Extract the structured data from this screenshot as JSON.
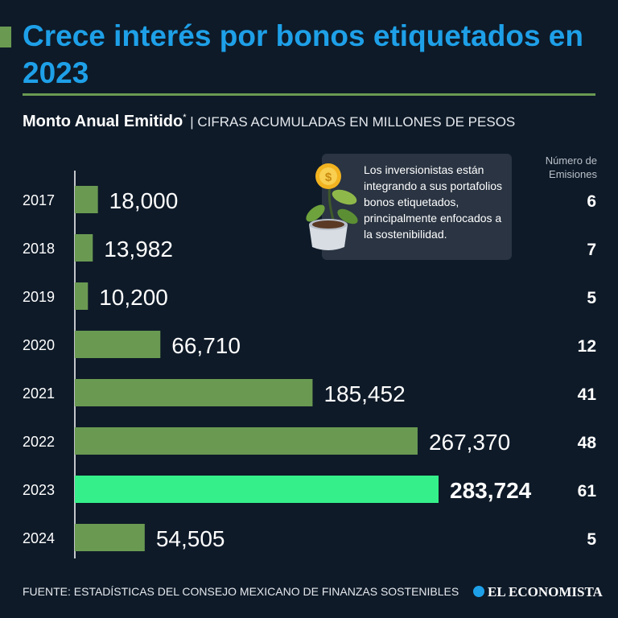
{
  "header": {
    "title": "Crece interés por bonos etiquetados en 2023",
    "subtitle_bold": "Monto Anual Emitido",
    "subtitle_asterisk": "*",
    "subtitle_light": " | CIFRAS ACUMULADAS EN MILLONES DE PESOS"
  },
  "count_header": [
    "Número de",
    "Emisiones"
  ],
  "callout": {
    "text": "Los inversionistas están integrando a sus portafolios bonos etiquetados, principalmente enfocados a la sostenibilidad."
  },
  "colors": {
    "background": "#0e1a28",
    "title": "#1ea0e8",
    "bar": "#6a9a52",
    "highlight_bar": "#35f08a",
    "rule": "#6a9a52"
  },
  "chart_data": {
    "type": "bar",
    "orientation": "horizontal",
    "categories": [
      "2017",
      "2018",
      "2019",
      "2020",
      "2021",
      "2022",
      "2023",
      "2024"
    ],
    "values": [
      18000,
      13982,
      10200,
      66710,
      185452,
      267370,
      283724,
      54505
    ],
    "value_labels": [
      "18,000",
      "13,982",
      "10,200",
      "66,710",
      "185,452",
      "267,370",
      "283,724",
      "54,505"
    ],
    "emissions": [
      6,
      7,
      5,
      12,
      41,
      48,
      61,
      5
    ],
    "highlight": "2023",
    "xlim": [
      0,
      283724
    ],
    "grid": false,
    "legend": "none"
  },
  "footer": {
    "source": "FUENTE: ESTADÍSTICAS DEL CONSEJO MEXICANO DE FINANZAS SOSTENIBLES",
    "logo": "EL ECONOMISTA"
  }
}
